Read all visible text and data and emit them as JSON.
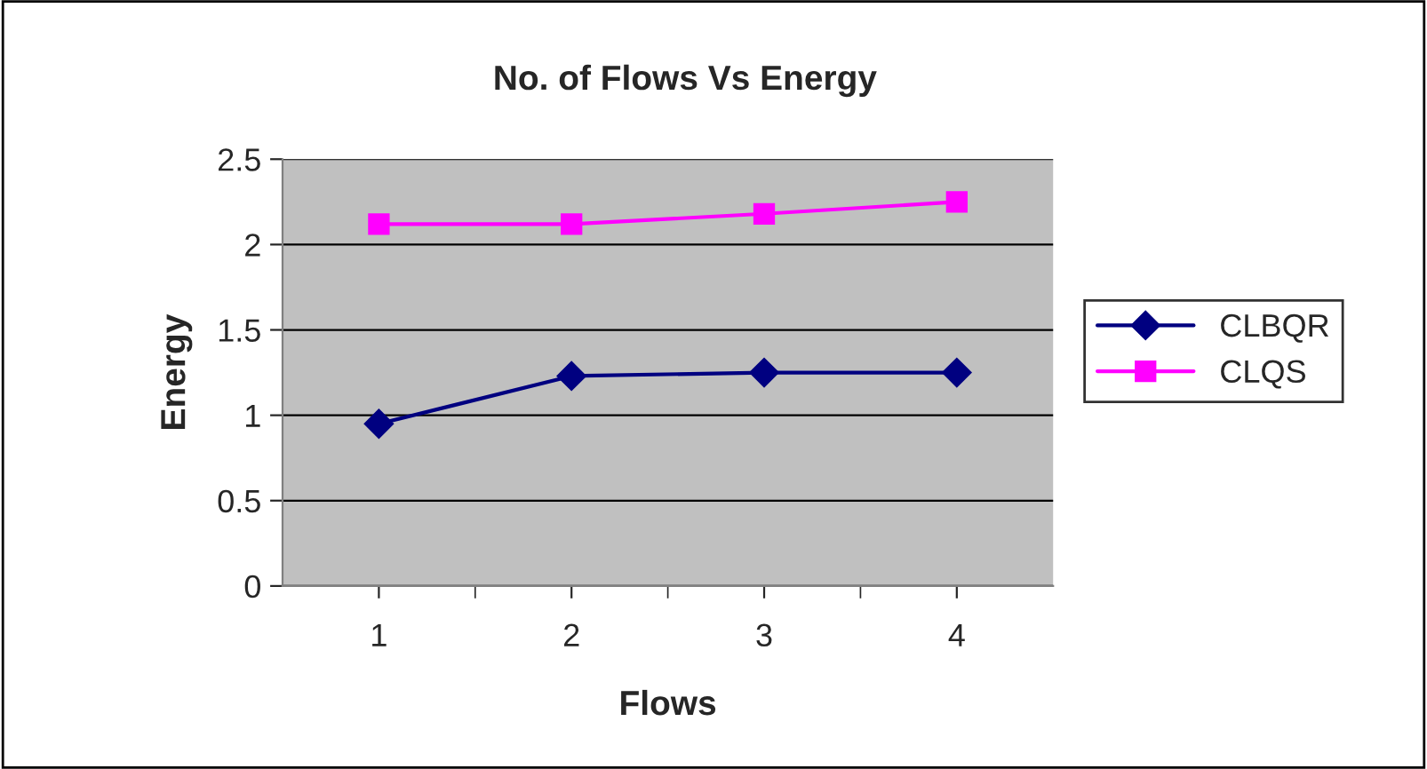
{
  "chart_data": {
    "type": "line",
    "title": "No. of Flows Vs Energy",
    "xlabel": "Flows",
    "ylabel": "Energy",
    "categories": [
      "1",
      "2",
      "3",
      "4"
    ],
    "series": [
      {
        "name": "CLBQR",
        "color": "#000080",
        "marker": "diamond",
        "values": [
          0.95,
          1.23,
          1.25,
          1.25
        ]
      },
      {
        "name": "CLQS",
        "color": "#ff00ff",
        "marker": "square",
        "values": [
          2.12,
          2.12,
          2.18,
          2.25
        ]
      }
    ],
    "ylim": [
      0,
      2.5
    ],
    "yticks": [
      0,
      0.5,
      1,
      1.5,
      2,
      2.5
    ],
    "grid": "y",
    "legend": "right"
  }
}
